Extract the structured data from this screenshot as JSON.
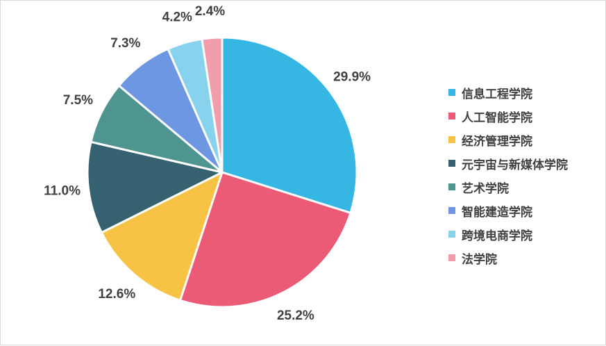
{
  "chart_data": {
    "type": "pie",
    "title": "",
    "categories": [
      "信息工程学院",
      "人工智能学院",
      "经济管理学院",
      "元宇宙与新媒体学院",
      "艺术学院",
      "智能建造学院",
      "跨境电商学院",
      "法学院"
    ],
    "values": [
      29.9,
      25.2,
      12.6,
      11.0,
      7.5,
      7.3,
      4.2,
      2.4
    ],
    "labels": [
      "29.9%",
      "25.2%",
      "12.6%",
      "11.0%",
      "7.5%",
      "7.3%",
      "4.2%",
      "2.4%"
    ],
    "colors": [
      "#35b6e3",
      "#eb5b76",
      "#f8c244",
      "#356170",
      "#4f958f",
      "#6d97e3",
      "#87d3ed",
      "#f19dab"
    ],
    "legend_position": "right",
    "start_angle": "12 o'clock",
    "direction": "clockwise"
  }
}
